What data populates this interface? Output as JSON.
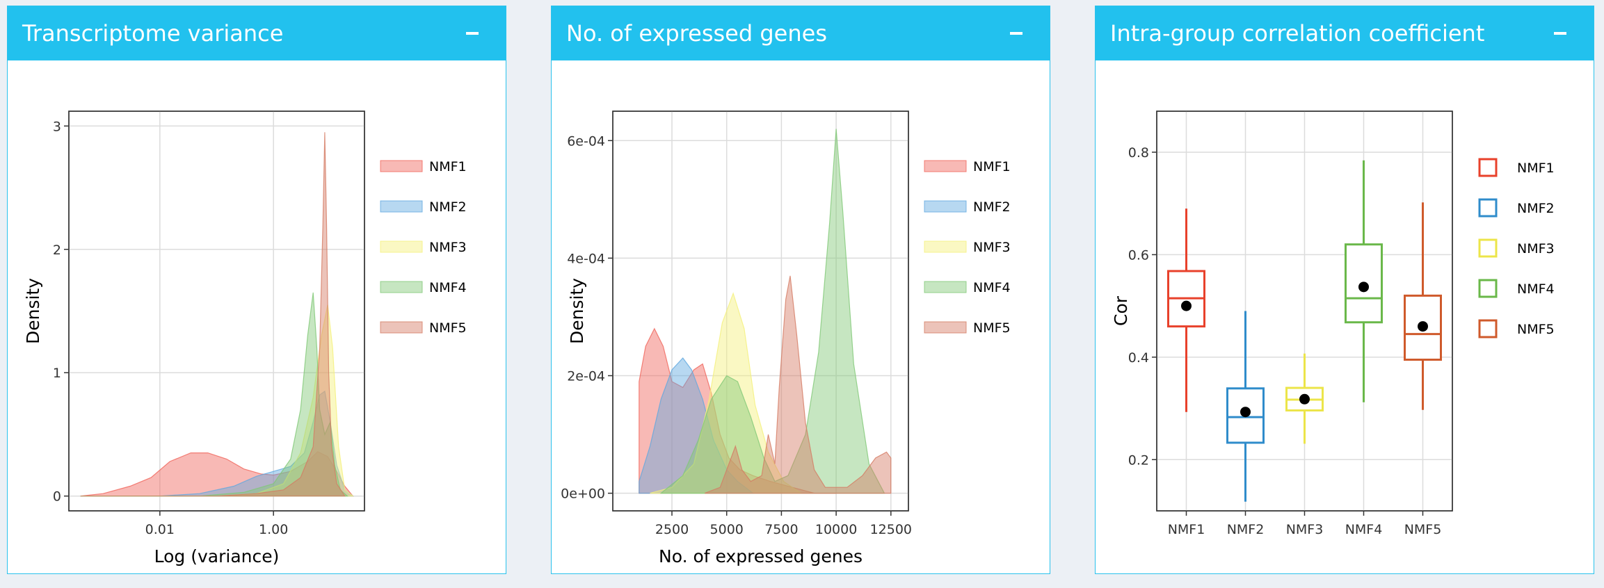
{
  "colors": {
    "header": "#22c1ee",
    "series": [
      "#f0645a",
      "#5fa8df",
      "#f4f07a",
      "#80c875",
      "#d57a63"
    ],
    "box_series": [
      "#e8412b",
      "#2f8ccb",
      "#ece54a",
      "#6ab84a",
      "#cf5a2b"
    ]
  },
  "panels": [
    {
      "title": "Transcriptome variance",
      "collapse_label": "−"
    },
    {
      "title": "No. of expressed genes",
      "collapse_label": "−"
    },
    {
      "title": "Intra-group correlation coefficient",
      "collapse_label": "−"
    }
  ],
  "chart_data": [
    {
      "type": "area",
      "xlabel": "Log (variance)",
      "ylabel": "Density",
      "x_scale": "log10",
      "xlim": [
        0.00025,
        40
      ],
      "ylim": [
        -0.12,
        3.12
      ],
      "x_ticks": [
        {
          "value": 0.01,
          "label": "0.01"
        },
        {
          "value": 1,
          "label": "1.00"
        }
      ],
      "y_ticks": [
        0,
        1,
        2,
        3
      ],
      "grid": true,
      "legend_position": "right",
      "series": [
        {
          "name": "NMF1",
          "points": [
            [
              0.0004,
              0
            ],
            [
              0.001,
              0.02
            ],
            [
              0.003,
              0.08
            ],
            [
              0.007,
              0.15
            ],
            [
              0.015,
              0.28
            ],
            [
              0.035,
              0.35
            ],
            [
              0.07,
              0.35
            ],
            [
              0.15,
              0.3
            ],
            [
              0.3,
              0.22
            ],
            [
              0.6,
              0.18
            ],
            [
              1,
              0.17
            ],
            [
              2,
              0.2
            ],
            [
              4,
              0.28
            ],
            [
              6,
              0.36
            ],
            [
              9,
              0.32
            ],
            [
              13,
              0.2
            ],
            [
              18,
              0.08
            ],
            [
              25,
              0
            ]
          ]
        },
        {
          "name": "NMF2",
          "points": [
            [
              0.0004,
              0
            ],
            [
              0.01,
              0
            ],
            [
              0.05,
              0.02
            ],
            [
              0.2,
              0.08
            ],
            [
              0.5,
              0.16
            ],
            [
              1,
              0.2
            ],
            [
              2,
              0.24
            ],
            [
              3.5,
              0.35
            ],
            [
              5,
              0.6
            ],
            [
              6.5,
              0.82
            ],
            [
              8,
              0.85
            ],
            [
              10,
              0.6
            ],
            [
              13,
              0.25
            ],
            [
              18,
              0.05
            ],
            [
              25,
              0
            ]
          ]
        },
        {
          "name": "NMF3",
          "points": [
            [
              0.0004,
              0
            ],
            [
              0.1,
              0
            ],
            [
              0.5,
              0.02
            ],
            [
              1.5,
              0.1
            ],
            [
              3,
              0.35
            ],
            [
              5,
              0.8
            ],
            [
              7,
              1.3
            ],
            [
              9,
              1.55
            ],
            [
              11,
              1.2
            ],
            [
              14,
              0.4
            ],
            [
              18,
              0.05
            ],
            [
              25,
              0
            ]
          ]
        },
        {
          "name": "NMF4",
          "points": [
            [
              0.0004,
              0
            ],
            [
              0.05,
              0
            ],
            [
              0.3,
              0.03
            ],
            [
              1,
              0.1
            ],
            [
              2,
              0.3
            ],
            [
              3,
              0.7
            ],
            [
              4,
              1.3
            ],
            [
              5,
              1.65
            ],
            [
              5.8,
              1.2
            ],
            [
              6.5,
              0.7
            ],
            [
              8,
              0.5
            ],
            [
              10,
              0.6
            ],
            [
              12,
              0.25
            ],
            [
              15,
              0.05
            ],
            [
              20,
              0
            ]
          ]
        },
        {
          "name": "NMF5",
          "points": [
            [
              0.0004,
              0
            ],
            [
              0.1,
              0
            ],
            [
              0.5,
              0.02
            ],
            [
              1.5,
              0.05
            ],
            [
              3,
              0.15
            ],
            [
              5,
              0.4
            ],
            [
              6.5,
              1.2
            ],
            [
              7.4,
              2.2
            ],
            [
              8,
              2.95
            ],
            [
              8.6,
              2.2
            ],
            [
              9.4,
              1.0
            ],
            [
              10.5,
              0.4
            ],
            [
              13,
              0.1
            ],
            [
              18,
              0
            ]
          ]
        }
      ]
    },
    {
      "type": "area",
      "xlabel": "No. of expressed genes",
      "ylabel": "Density",
      "xlim": [
        -200,
        13300
      ],
      "ylim": [
        -3e-05,
        0.00065
      ],
      "x_ticks": [
        {
          "value": 2500,
          "label": "2500"
        },
        {
          "value": 5000,
          "label": "5000"
        },
        {
          "value": 7500,
          "label": "7500"
        },
        {
          "value": 10000,
          "label": "10000"
        },
        {
          "value": 12500,
          "label": "12500"
        }
      ],
      "y_ticks": [
        {
          "value": 0,
          "label": "0e+00"
        },
        {
          "value": 0.0002,
          "label": "2e-04"
        },
        {
          "value": 0.0004,
          "label": "4e-04"
        },
        {
          "value": 0.0006,
          "label": "6e-04"
        }
      ],
      "grid": true,
      "legend_position": "right",
      "series": [
        {
          "name": "NMF1",
          "points": [
            [
              1000,
              0
            ],
            [
              1000,
              0.00019
            ],
            [
              1300,
              0.00025
            ],
            [
              1700,
              0.00028
            ],
            [
              2100,
              0.00025
            ],
            [
              2500,
              0.00019
            ],
            [
              3000,
              0.00018
            ],
            [
              3500,
              0.00021
            ],
            [
              3900,
              0.00022
            ],
            [
              4300,
              0.00017
            ],
            [
              4700,
              0.0001
            ],
            [
              5100,
              6e-05
            ],
            [
              5600,
              4e-05
            ],
            [
              6200,
              3e-05
            ],
            [
              7000,
              2e-05
            ],
            [
              8000,
              1e-05
            ],
            [
              9000,
              0
            ],
            [
              10000,
              0
            ]
          ]
        },
        {
          "name": "NMF2",
          "points": [
            [
              1000,
              0
            ],
            [
              1000,
              2e-05
            ],
            [
              1500,
              8e-05
            ],
            [
              2000,
              0.00016
            ],
            [
              2500,
              0.00021
            ],
            [
              3000,
              0.00023
            ],
            [
              3400,
              0.00021
            ],
            [
              3900,
              0.00016
            ],
            [
              4400,
              9e-05
            ],
            [
              5000,
              4e-05
            ],
            [
              5500,
              2e-05
            ],
            [
              6200,
              0
            ]
          ]
        },
        {
          "name": "NMF3",
          "points": [
            [
              1500,
              0
            ],
            [
              2500,
              1e-05
            ],
            [
              3500,
              5e-05
            ],
            [
              4200,
              0.00016
            ],
            [
              4800,
              0.00029
            ],
            [
              5300,
              0.00034
            ],
            [
              5800,
              0.00028
            ],
            [
              6300,
              0.00015
            ],
            [
              6900,
              7e-05
            ],
            [
              7600,
              2e-05
            ],
            [
              8400,
              0
            ]
          ]
        },
        {
          "name": "NMF4",
          "points": [
            [
              2000,
              0
            ],
            [
              3000,
              3e-05
            ],
            [
              3700,
              9e-05
            ],
            [
              4300,
              0.00016
            ],
            [
              5000,
              0.0002
            ],
            [
              5500,
              0.00019
            ],
            [
              6100,
              0.00013
            ],
            [
              6700,
              6e-05
            ],
            [
              7200,
              2e-05
            ],
            [
              7800,
              3e-05
            ],
            [
              8600,
              0.0001
            ],
            [
              9200,
              0.00024
            ],
            [
              9700,
              0.00046
            ],
            [
              10000,
              0.00062
            ],
            [
              10300,
              0.00048
            ],
            [
              10800,
              0.00022
            ],
            [
              11500,
              5e-05
            ],
            [
              12200,
              0
            ]
          ]
        },
        {
          "name": "NMF5",
          "points": [
            [
              4000,
              0
            ],
            [
              4700,
              1e-05
            ],
            [
              5100,
              5e-05
            ],
            [
              5400,
              8e-05
            ],
            [
              5700,
              4e-05
            ],
            [
              6100,
              2e-05
            ],
            [
              6600,
              3e-05
            ],
            [
              6900,
              0.0001
            ],
            [
              7200,
              5e-05
            ],
            [
              7400,
              0.00018
            ],
            [
              7700,
              0.00033
            ],
            [
              7900,
              0.00037
            ],
            [
              8200,
              0.00027
            ],
            [
              8600,
              0.00012
            ],
            [
              9000,
              4e-05
            ],
            [
              9500,
              1e-05
            ],
            [
              10500,
              1e-05
            ],
            [
              11200,
              3e-05
            ],
            [
              11800,
              6e-05
            ],
            [
              12300,
              7e-05
            ],
            [
              12500,
              6e-05
            ],
            [
              12500,
              0
            ]
          ]
        }
      ]
    },
    {
      "type": "box",
      "xlabel": "",
      "ylabel": "Cor",
      "ylim": [
        0.1,
        0.88
      ],
      "y_ticks": [
        0.2,
        0.4,
        0.6,
        0.8
      ],
      "grid": true,
      "legend_position": "right",
      "categories": [
        "NMF1",
        "NMF2",
        "NMF3",
        "NMF4",
        "NMF5"
      ],
      "boxes": [
        {
          "name": "NMF1",
          "min": 0.293,
          "q1": 0.46,
          "median": 0.515,
          "q3": 0.568,
          "max": 0.69,
          "mean": 0.5
        },
        {
          "name": "NMF2",
          "min": 0.118,
          "q1": 0.233,
          "median": 0.283,
          "q3": 0.339,
          "max": 0.49,
          "mean": 0.293
        },
        {
          "name": "NMF3",
          "min": 0.231,
          "q1": 0.296,
          "median": 0.317,
          "q3": 0.34,
          "max": 0.407,
          "mean": 0.318
        },
        {
          "name": "NMF4",
          "min": 0.312,
          "q1": 0.468,
          "median": 0.515,
          "q3": 0.62,
          "max": 0.784,
          "mean": 0.537
        },
        {
          "name": "NMF5",
          "min": 0.297,
          "q1": 0.395,
          "median": 0.445,
          "q3": 0.52,
          "max": 0.702,
          "mean": 0.46
        }
      ]
    }
  ]
}
